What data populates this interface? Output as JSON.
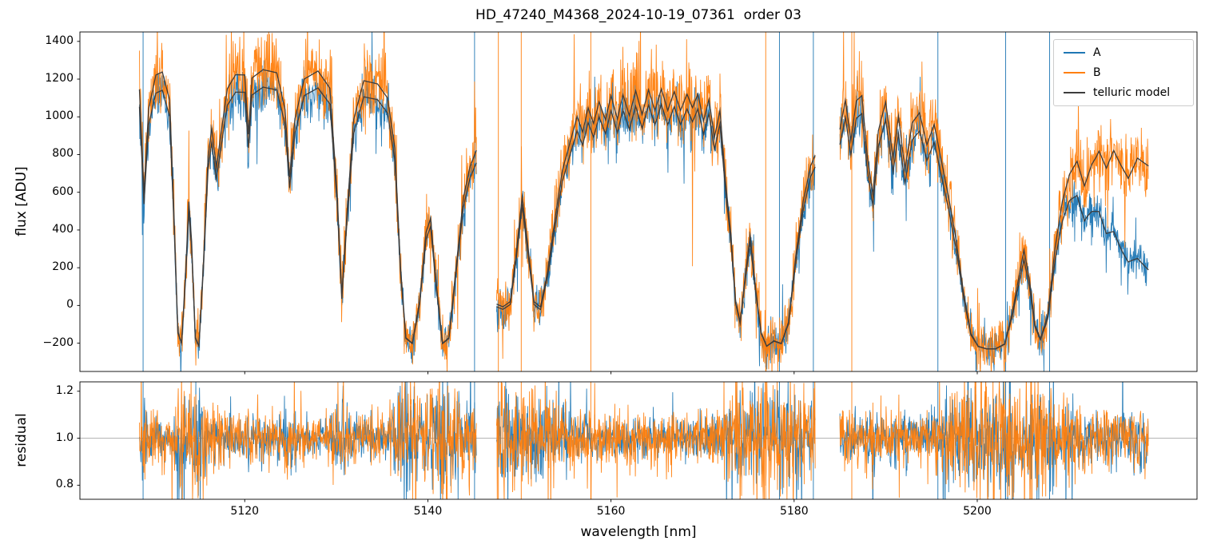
{
  "chart_data": {
    "type": "line",
    "title": "HD_47240_M4368_2024-10-19_07361  order 03",
    "xlabel": "wavelength [nm]",
    "xlim": [
      5102,
      5224
    ],
    "xticks": [
      5120,
      5140,
      5160,
      5180,
      5200
    ],
    "panels": [
      {
        "name": "flux",
        "ylabel": "flux [ADU]",
        "ylim": [
          -350,
          1450
        ],
        "yticks": [
          -200,
          0,
          200,
          400,
          600,
          800,
          1000,
          1200,
          1400
        ]
      },
      {
        "name": "residual",
        "ylabel": "residual",
        "ylim": [
          0.74,
          1.24
        ],
        "yticks": [
          0.8,
          1.0,
          1.2
        ],
        "hline": 1.0,
        "hline_color": "#aaaaaa"
      }
    ],
    "legend": {
      "position": "upper right",
      "entries": [
        "A",
        "B",
        "telluric model"
      ]
    },
    "series": [
      {
        "name": "A",
        "color": "#1f77b4"
      },
      {
        "name": "B",
        "color": "#ff7f0e"
      },
      {
        "name": "telluric model",
        "color": "#3d3d3d"
      }
    ],
    "segments": [
      [
        5108.5,
        5145.3
      ],
      [
        5147.5,
        5182.3
      ],
      [
        5185.0,
        5218.7
      ]
    ],
    "deep_line_floor": -230,
    "telluric_transmission": [
      [
        5108.5,
        0.92
      ],
      [
        5109.0,
        0.55
      ],
      [
        5109.5,
        0.85
      ],
      [
        5110.3,
        0.97
      ],
      [
        5111.0,
        0.98
      ],
      [
        5111.8,
        0.88
      ],
      [
        5112.3,
        0.45
      ],
      [
        5112.7,
        0.06
      ],
      [
        5113.1,
        0.02
      ],
      [
        5113.5,
        0.24
      ],
      [
        5113.9,
        0.52
      ],
      [
        5114.2,
        0.38
      ],
      [
        5114.6,
        0.04
      ],
      [
        5115.0,
        0.01
      ],
      [
        5115.5,
        0.31
      ],
      [
        5116.0,
        0.68
      ],
      [
        5116.4,
        0.78
      ],
      [
        5116.9,
        0.64
      ],
      [
        5117.4,
        0.76
      ],
      [
        5118.1,
        0.92
      ],
      [
        5119.0,
        0.97
      ],
      [
        5120.0,
        0.97
      ],
      [
        5120.4,
        0.76
      ],
      [
        5120.8,
        0.96
      ],
      [
        5122.0,
        0.99
      ],
      [
        5123.5,
        0.98
      ],
      [
        5124.4,
        0.85
      ],
      [
        5124.9,
        0.61
      ],
      [
        5125.5,
        0.82
      ],
      [
        5126.5,
        0.96
      ],
      [
        5128.0,
        0.99
      ],
      [
        5129.3,
        0.93
      ],
      [
        5130.1,
        0.55
      ],
      [
        5130.6,
        0.19
      ],
      [
        5131.2,
        0.5
      ],
      [
        5131.9,
        0.82
      ],
      [
        5133.0,
        0.96
      ],
      [
        5134.5,
        0.95
      ],
      [
        5135.6,
        0.9
      ],
      [
        5136.4,
        0.72
      ],
      [
        5137.0,
        0.3
      ],
      [
        5137.6,
        0.04
      ],
      [
        5138.3,
        0.02
      ],
      [
        5139.1,
        0.17
      ],
      [
        5139.8,
        0.42
      ],
      [
        5140.3,
        0.47
      ],
      [
        5140.9,
        0.24
      ],
      [
        5141.6,
        0.02
      ],
      [
        5142.3,
        0.04
      ],
      [
        5143.1,
        0.3
      ],
      [
        5143.9,
        0.55
      ],
      [
        5144.6,
        0.66
      ],
      [
        5145.3,
        0.72
      ],
      [
        5147.5,
        0.17
      ],
      [
        5148.2,
        0.16
      ],
      [
        5149.0,
        0.18
      ],
      [
        5149.6,
        0.35
      ],
      [
        5150.3,
        0.58
      ],
      [
        5150.9,
        0.4
      ],
      [
        5151.6,
        0.18
      ],
      [
        5152.3,
        0.16
      ],
      [
        5153.1,
        0.3
      ],
      [
        5153.9,
        0.5
      ],
      [
        5154.7,
        0.68
      ],
      [
        5155.5,
        0.78
      ],
      [
        5156.3,
        0.88
      ],
      [
        5156.9,
        0.82
      ],
      [
        5157.5,
        0.91
      ],
      [
        5158.1,
        0.85
      ],
      [
        5158.7,
        0.93
      ],
      [
        5159.4,
        0.86
      ],
      [
        5160.0,
        0.95
      ],
      [
        5160.7,
        0.86
      ],
      [
        5161.3,
        0.95
      ],
      [
        5162.0,
        0.87
      ],
      [
        5162.7,
        0.96
      ],
      [
        5163.4,
        0.87
      ],
      [
        5164.1,
        0.96
      ],
      [
        5164.8,
        0.88
      ],
      [
        5165.5,
        0.96
      ],
      [
        5166.2,
        0.88
      ],
      [
        5166.9,
        0.95
      ],
      [
        5167.6,
        0.88
      ],
      [
        5168.3,
        0.94
      ],
      [
        5168.9,
        0.89
      ],
      [
        5169.5,
        0.94
      ],
      [
        5170.1,
        0.84
      ],
      [
        5170.7,
        0.92
      ],
      [
        5171.3,
        0.78
      ],
      [
        5171.9,
        0.88
      ],
      [
        5172.5,
        0.62
      ],
      [
        5173.1,
        0.42
      ],
      [
        5173.6,
        0.18
      ],
      [
        5174.1,
        0.1
      ],
      [
        5174.7,
        0.28
      ],
      [
        5175.2,
        0.42
      ],
      [
        5175.8,
        0.22
      ],
      [
        5176.4,
        0.06
      ],
      [
        5177.0,
        0.01
      ],
      [
        5177.8,
        0.03
      ],
      [
        5178.6,
        0.02
      ],
      [
        5179.4,
        0.1
      ],
      [
        5180.2,
        0.35
      ],
      [
        5181.0,
        0.55
      ],
      [
        5181.8,
        0.68
      ],
      [
        5182.3,
        0.72
      ],
      [
        5185.0,
        0.82
      ],
      [
        5185.6,
        0.93
      ],
      [
        5186.2,
        0.78
      ],
      [
        5186.8,
        0.93
      ],
      [
        5187.4,
        0.95
      ],
      [
        5188.0,
        0.72
      ],
      [
        5188.6,
        0.58
      ],
      [
        5189.2,
        0.82
      ],
      [
        5190.0,
        0.93
      ],
      [
        5190.8,
        0.72
      ],
      [
        5191.4,
        0.88
      ],
      [
        5192.1,
        0.68
      ],
      [
        5192.9,
        0.86
      ],
      [
        5193.7,
        0.9
      ],
      [
        5194.5,
        0.78
      ],
      [
        5195.3,
        0.86
      ],
      [
        5196.1,
        0.72
      ],
      [
        5196.9,
        0.58
      ],
      [
        5197.7,
        0.42
      ],
      [
        5198.5,
        0.22
      ],
      [
        5199.3,
        0.06
      ],
      [
        5200.1,
        0.01
      ],
      [
        5201.0,
        0.0
      ],
      [
        5202.0,
        0.0
      ],
      [
        5203.0,
        0.02
      ],
      [
        5203.8,
        0.14
      ],
      [
        5204.5,
        0.28
      ],
      [
        5205.1,
        0.4
      ],
      [
        5205.7,
        0.28
      ],
      [
        5206.3,
        0.1
      ],
      [
        5206.9,
        0.04
      ],
      [
        5207.7,
        0.14
      ],
      [
        5208.5,
        0.42
      ],
      [
        5209.3,
        0.62
      ],
      [
        5210.1,
        0.74
      ],
      [
        5210.9,
        0.8
      ],
      [
        5211.7,
        0.7
      ],
      [
        5212.5,
        0.8
      ],
      [
        5213.3,
        0.86
      ],
      [
        5214.1,
        0.78
      ],
      [
        5214.9,
        0.85
      ],
      [
        5215.7,
        0.78
      ],
      [
        5216.5,
        0.72
      ],
      [
        5217.5,
        0.8
      ],
      [
        5218.7,
        0.76
      ]
    ],
    "continuum_A": [
      [
        5108.5,
        1165
      ],
      [
        5115,
        1175
      ],
      [
        5125,
        1170
      ],
      [
        5135,
        1160
      ],
      [
        5145.3,
        1140
      ],
      [
        5147.5,
        1080
      ],
      [
        5152,
        1070
      ],
      [
        5158,
        1090
      ],
      [
        5165,
        1120
      ],
      [
        5172,
        1125
      ],
      [
        5182.3,
        1110
      ],
      [
        5185,
        1090
      ],
      [
        5190,
        1075
      ],
      [
        5196,
        1040
      ],
      [
        5202,
        990
      ],
      [
        5207,
        930
      ],
      [
        5210,
        840
      ],
      [
        5212,
        720
      ],
      [
        5214,
        560
      ],
      [
        5216,
        430
      ],
      [
        5218.7,
        320
      ]
    ],
    "continuum_B": [
      [
        5108.5,
        1265
      ],
      [
        5115,
        1272
      ],
      [
        5125,
        1262
      ],
      [
        5135,
        1248
      ],
      [
        5145.3,
        1232
      ],
      [
        5147.5,
        1165
      ],
      [
        5152,
        1155
      ],
      [
        5158,
        1175
      ],
      [
        5165,
        1205
      ],
      [
        5172,
        1208
      ],
      [
        5182.3,
        1195
      ],
      [
        5185,
        1188
      ],
      [
        5190,
        1178
      ],
      [
        5196,
        1150
      ],
      [
        5202,
        1110
      ],
      [
        5207,
        1065
      ],
      [
        5210,
        1025
      ],
      [
        5213,
        985
      ],
      [
        5216,
        1020
      ],
      [
        5218.7,
        1045
      ]
    ],
    "noise": {
      "A": {
        "base": 50,
        "flux_scale": 0.015,
        "residual_base": 0.04
      },
      "B": {
        "base": 70,
        "flux_scale": 0.03,
        "residual_base": 0.05
      },
      "residual_telluric_boost": 2.0,
      "outlier_fraction": 0.03,
      "outlier_scale": 2.8
    },
    "spikes": [
      {
        "wl": 5108.9,
        "series": "A"
      },
      {
        "wl": 5145.1,
        "series": "A"
      },
      {
        "wl": 5147.7,
        "series": "B"
      },
      {
        "wl": 5150.2,
        "series": "B"
      },
      {
        "wl": 5157.8,
        "series": "B"
      },
      {
        "wl": 5176.9,
        "series": "B"
      },
      {
        "wl": 5178.4,
        "series": "A"
      },
      {
        "wl": 5182.1,
        "series": "A"
      },
      {
        "wl": 5186.3,
        "series": "B"
      },
      {
        "wl": 5195.7,
        "series": "A"
      },
      {
        "wl": 5203.1,
        "series": "A"
      },
      {
        "wl": 5207.9,
        "series": "A"
      }
    ]
  }
}
